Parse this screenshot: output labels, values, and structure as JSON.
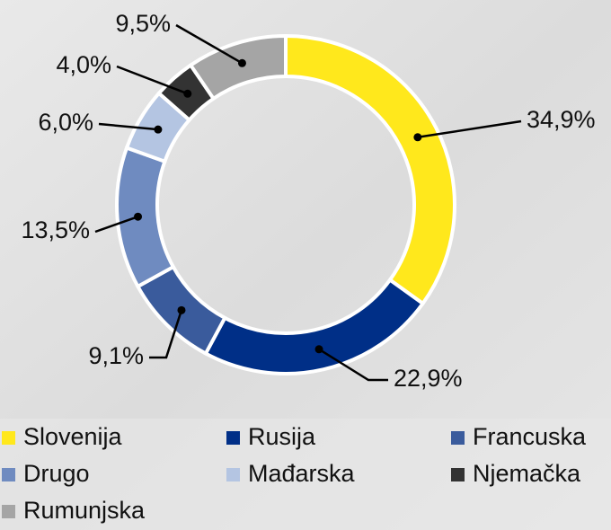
{
  "chart_data": {
    "type": "donut",
    "categories": [
      "Slovenija",
      "Rusija",
      "Francuska",
      "Drugo",
      "Mađarska",
      "Njemačka",
      "Rumunjska"
    ],
    "values": [
      34.9,
      22.9,
      9.1,
      13.5,
      6.0,
      4.0,
      9.5
    ],
    "value_labels": [
      "34,9%",
      "22,9%",
      "9,1%",
      "13,5%",
      "6,0%",
      "4,0%",
      "9,5%"
    ],
    "colors": [
      "#ffe81c",
      "#002f87",
      "#3a5b9c",
      "#6f8bc0",
      "#b4c5e2",
      "#333333",
      "#a5a5a5"
    ]
  }
}
